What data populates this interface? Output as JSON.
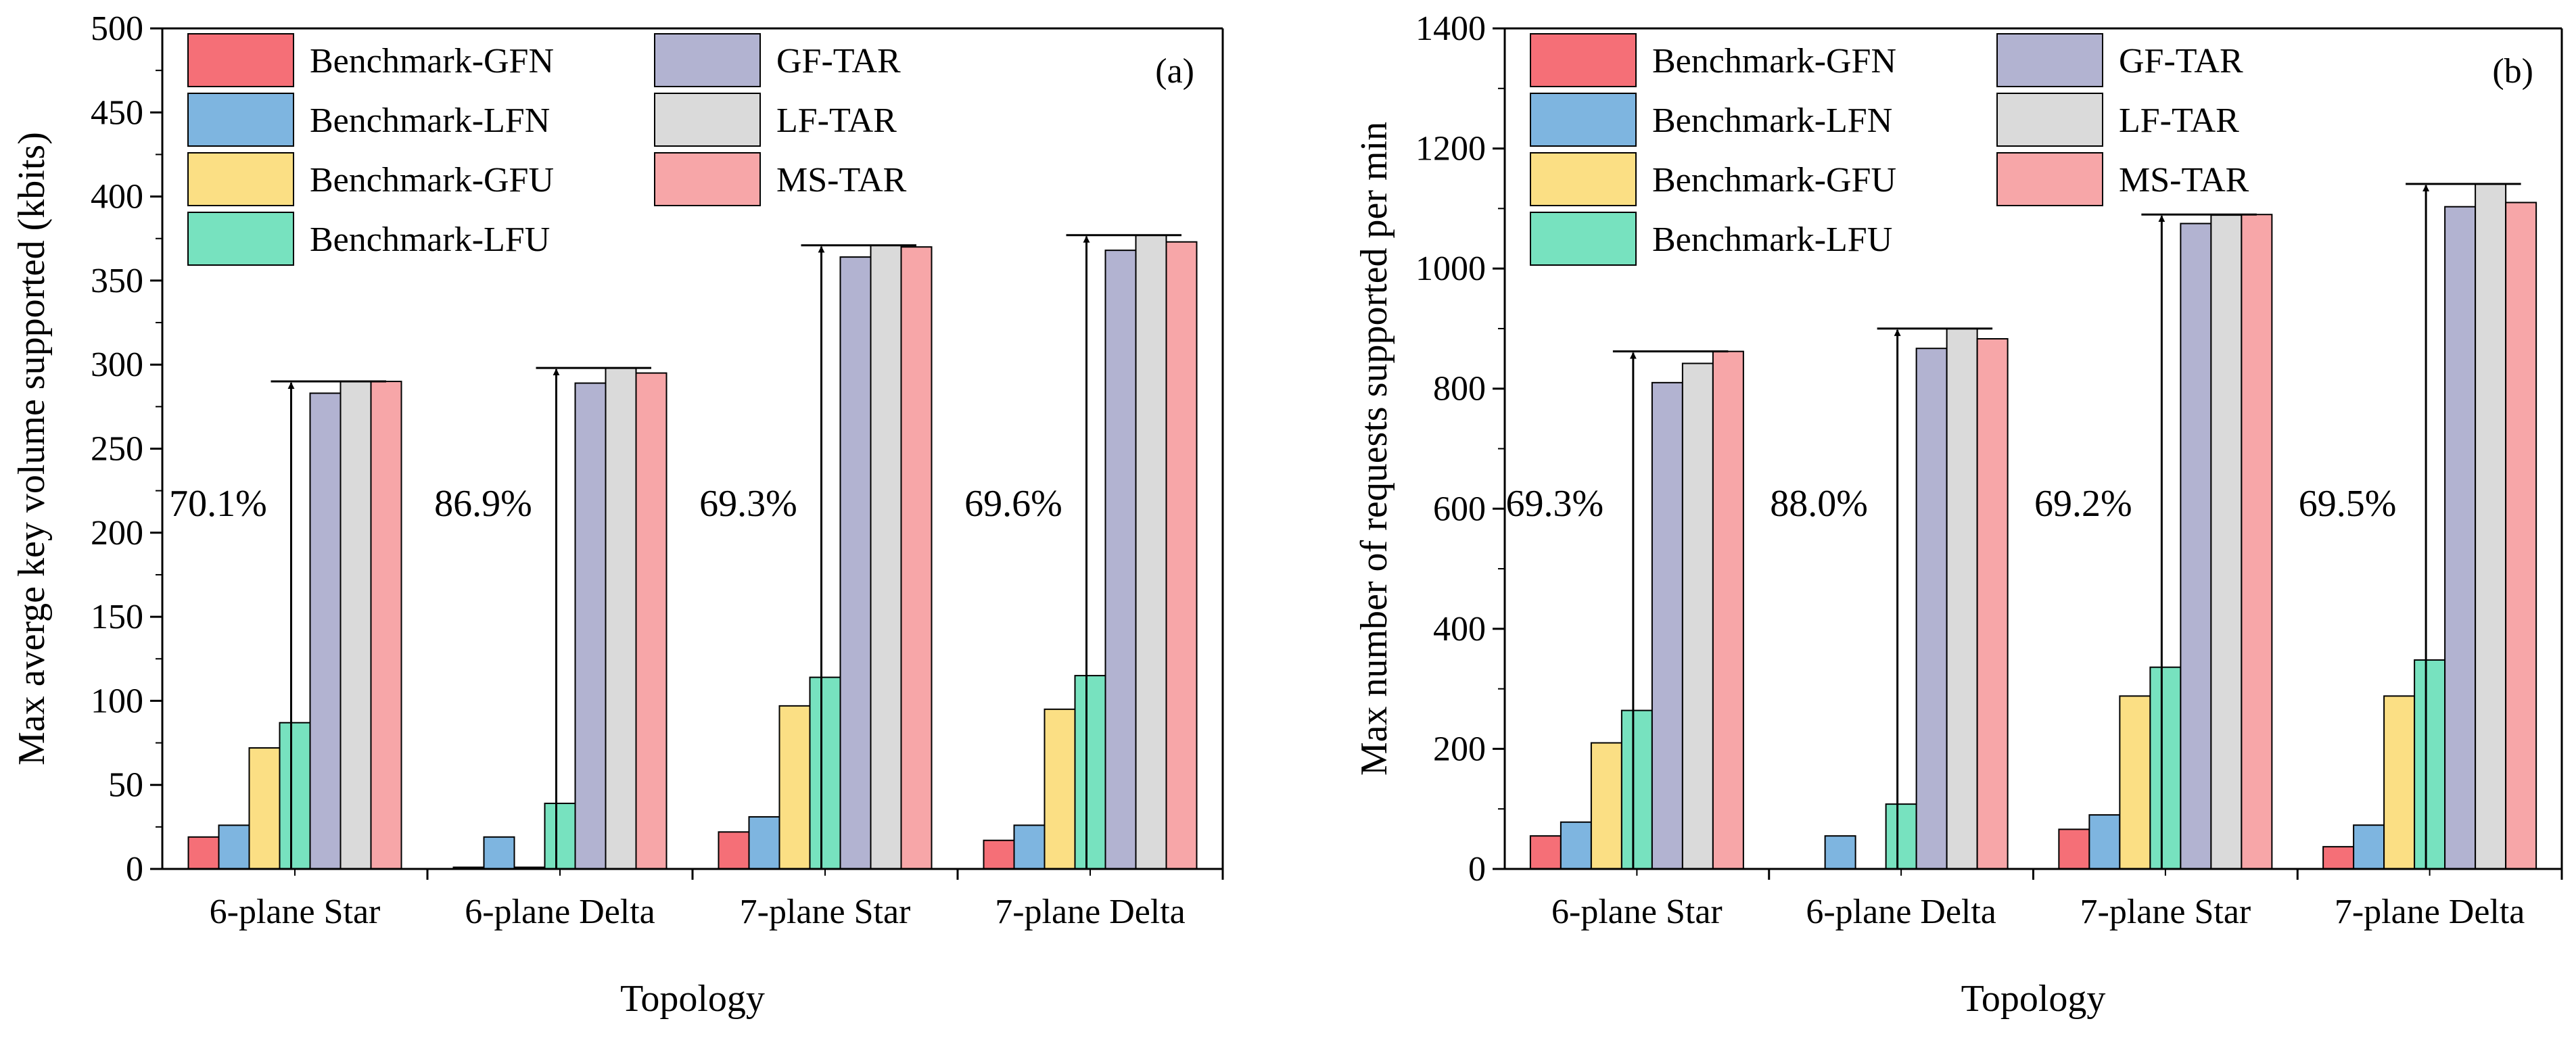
{
  "chart_data": [
    {
      "type": "bar",
      "panel_label": "(a)",
      "title": "",
      "xlabel": "Topology",
      "ylabel": "Max averge key volume supported (kbits)",
      "categories": [
        "6-plane Star",
        "6-plane Delta",
        "7-plane Star",
        "7-plane Delta"
      ],
      "ylim": [
        0,
        500
      ],
      "yticks": [
        0,
        50,
        100,
        150,
        200,
        250,
        300,
        350,
        400,
        450,
        500
      ],
      "series": [
        {
          "name": "Benchmark-GFN",
          "color": "#f56f77",
          "values": [
            19,
            1,
            22,
            17
          ]
        },
        {
          "name": "Benchmark-LFN",
          "color": "#7eb5e0",
          "values": [
            26,
            19,
            31,
            26
          ]
        },
        {
          "name": "Benchmark-GFU",
          "color": "#fbdf84",
          "values": [
            72,
            1,
            97,
            95
          ]
        },
        {
          "name": "Benchmark-LFU",
          "color": "#77e2bf",
          "values": [
            87,
            39,
            114,
            115
          ]
        },
        {
          "name": "GF-TAR",
          "color": "#b2b3d1",
          "values": [
            283,
            289,
            364,
            368
          ]
        },
        {
          "name": "LF-TAR",
          "color": "#dadada",
          "values": [
            290,
            298,
            371,
            377
          ]
        },
        {
          "name": "MS-TAR",
          "color": "#f7a6a8",
          "values": [
            290,
            295,
            370,
            373
          ]
        }
      ],
      "annotations": [
        {
          "category": "6-plane Star",
          "text": "70.1%",
          "from": 0,
          "to": 290
        },
        {
          "category": "6-plane Delta",
          "text": "86.9%",
          "from": 0,
          "to": 298
        },
        {
          "category": "7-plane Star",
          "text": "69.3%",
          "from": 0,
          "to": 371
        },
        {
          "category": "7-plane Delta",
          "text": "69.6%",
          "from": 0,
          "to": 377
        }
      ],
      "legend": "top-left"
    },
    {
      "type": "bar",
      "panel_label": "(b)",
      "title": "",
      "xlabel": "Topology",
      "ylabel": "Max number of requests supported per min",
      "categories": [
        "6-plane Star",
        "6-plane Delta",
        "7-plane Star",
        "7-plane Delta"
      ],
      "ylim": [
        0,
        1400
      ],
      "yticks": [
        0,
        200,
        400,
        600,
        800,
        1000,
        1200,
        1400
      ],
      "series": [
        {
          "name": "Benchmark-GFN",
          "color": "#f56f77",
          "values": [
            55,
            0,
            66,
            37
          ]
        },
        {
          "name": "Benchmark-LFN",
          "color": "#7eb5e0",
          "values": [
            78,
            55,
            90,
            73
          ]
        },
        {
          "name": "Benchmark-GFU",
          "color": "#fbdf84",
          "values": [
            210,
            0,
            288,
            288
          ]
        },
        {
          "name": "Benchmark-LFU",
          "color": "#77e2bf",
          "values": [
            264,
            108,
            336,
            348
          ]
        },
        {
          "name": "GF-TAR",
          "color": "#b2b3d1",
          "values": [
            810,
            867,
            1075,
            1103
          ]
        },
        {
          "name": "LF-TAR",
          "color": "#dadada",
          "values": [
            842,
            900,
            1089,
            1141
          ]
        },
        {
          "name": "MS-TAR",
          "color": "#f7a6a8",
          "values": [
            862,
            883,
            1090,
            1110
          ]
        }
      ],
      "annotations": [
        {
          "category": "6-plane Star",
          "text": "69.3%",
          "from": 0,
          "to": 862
        },
        {
          "category": "6-plane Delta",
          "text": "88.0%",
          "from": 0,
          "to": 900
        },
        {
          "category": "7-plane Star",
          "text": "69.2%",
          "from": 0,
          "to": 1090
        },
        {
          "category": "7-plane Delta",
          "text": "69.5%",
          "from": 0,
          "to": 1141
        }
      ],
      "legend": "top-left"
    }
  ]
}
